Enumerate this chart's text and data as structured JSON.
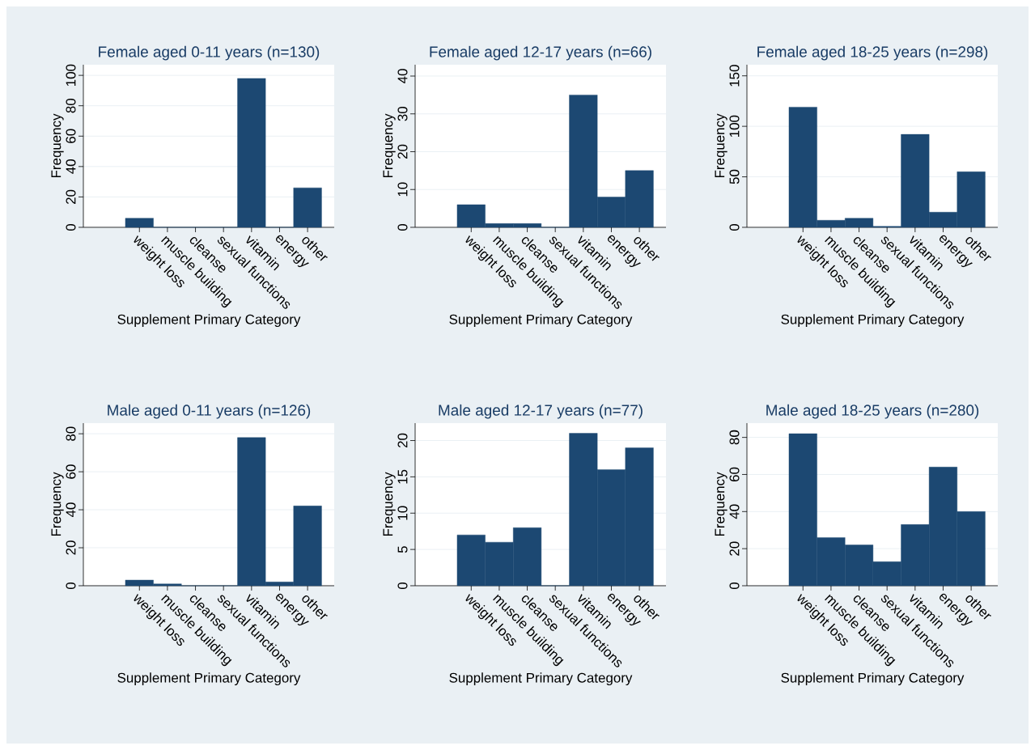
{
  "chart_data": [
    {
      "type": "bar",
      "title": "Female aged 0-11 years (n=130)",
      "xlabel": "Supplement Primary Category",
      "ylabel": "Frequency",
      "categories": [
        "weight loss",
        "muscle building",
        "cleanse",
        "sexual functions",
        "vitamin",
        "energy",
        "other"
      ],
      "values": [
        6,
        0,
        0,
        0,
        98,
        0,
        26
      ],
      "color": "#1c4872",
      "ylim": [
        0,
        107
      ],
      "yticks": [
        0,
        20,
        40,
        60,
        80,
        100
      ],
      "grid": "y"
    },
    {
      "type": "bar",
      "title": "Female aged 12-17 years (n=66)",
      "xlabel": "Supplement Primary Category",
      "ylabel": "Frequency",
      "categories": [
        "weight loss",
        "muscle building",
        "cleanse",
        "sexual functions",
        "vitamin",
        "energy",
        "other"
      ],
      "values": [
        6,
        1,
        1,
        0,
        35,
        8,
        15
      ],
      "color": "#1c4872",
      "ylim": [
        0,
        43
      ],
      "yticks": [
        0,
        10,
        20,
        30,
        40
      ],
      "grid": "y"
    },
    {
      "type": "bar",
      "title": "Female aged 18-25 years (n=298)",
      "xlabel": "Supplement Primary Category",
      "ylabel": "Frequency",
      "categories": [
        "weight loss",
        "muscle building",
        "cleanse",
        "sexual functions",
        "vitamin",
        "energy",
        "other"
      ],
      "values": [
        119,
        7,
        9,
        1,
        92,
        15,
        55
      ],
      "color": "#1c4872",
      "ylim": [
        0,
        161
      ],
      "yticks": [
        0,
        50,
        100,
        150
      ],
      "grid": "y"
    },
    {
      "type": "bar",
      "title": "Male aged 0-11 years (n=126)",
      "xlabel": "Supplement Primary Category",
      "ylabel": "Frequency",
      "categories": [
        "weight loss",
        "muscle building",
        "cleanse",
        "sexual functions",
        "vitamin",
        "energy",
        "other"
      ],
      "values": [
        3,
        1,
        0,
        0,
        78,
        2,
        42
      ],
      "color": "#1c4872",
      "ylim": [
        0,
        85.6
      ],
      "yticks": [
        0,
        20,
        40,
        60,
        80
      ],
      "grid": "y"
    },
    {
      "type": "bar",
      "title": "Male aged 12-17 years (n=77)",
      "xlabel": "Supplement Primary Category",
      "ylabel": "Frequency",
      "categories": [
        "weight loss",
        "muscle building",
        "cleanse",
        "sexual functions",
        "vitamin",
        "energy",
        "other"
      ],
      "values": [
        7,
        6,
        8,
        0,
        21,
        16,
        19
      ],
      "color": "#1c4872",
      "ylim": [
        0,
        22.4
      ],
      "yticks": [
        0,
        5,
        10,
        15,
        20
      ],
      "grid": "y"
    },
    {
      "type": "bar",
      "title": "Male aged 18-25 years (n=280)",
      "xlabel": "Supplement Primary Category",
      "ylabel": "Frequency",
      "categories": [
        "weight loss",
        "muscle building",
        "cleanse",
        "sexual functions",
        "vitamin",
        "energy",
        "other"
      ],
      "values": [
        82,
        26,
        22,
        13,
        33,
        64,
        40
      ],
      "color": "#1c4872",
      "ylim": [
        0,
        87.7
      ],
      "yticks": [
        0,
        20,
        40,
        60,
        80
      ],
      "grid": "y"
    }
  ]
}
